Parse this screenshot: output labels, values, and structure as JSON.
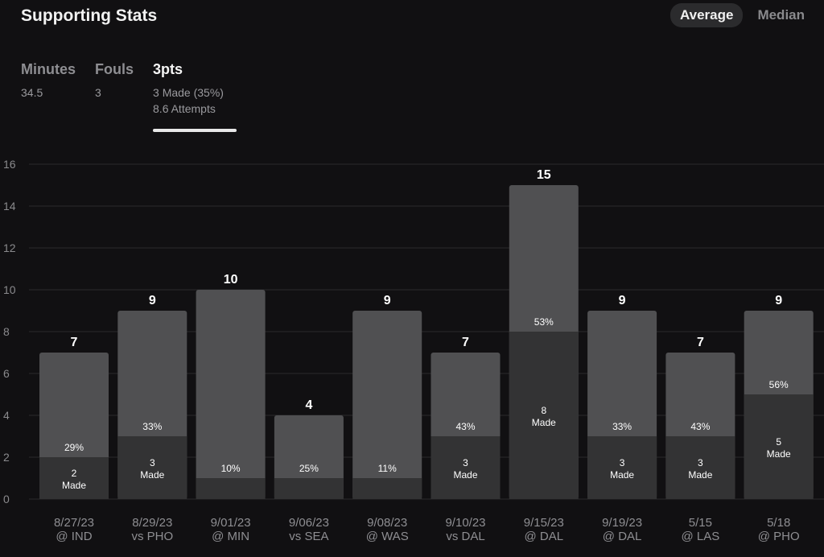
{
  "header": {
    "title": "Supporting Stats"
  },
  "toggle": {
    "options": [
      "Average",
      "Median"
    ],
    "selected": "Average"
  },
  "tabs": [
    {
      "label": "Minutes",
      "lines": [
        "34.5"
      ]
    },
    {
      "label": "Fouls",
      "lines": [
        "3"
      ]
    },
    {
      "label": "3pts",
      "lines": [
        "3 Made (35%)",
        "8.6 Attempts"
      ],
      "active": true
    }
  ],
  "chart_data": {
    "type": "bar",
    "ylim": [
      0,
      16
    ],
    "yticks": [
      0,
      2,
      4,
      6,
      8,
      10,
      12,
      14,
      16
    ],
    "made_word": "Made",
    "bars": [
      {
        "date": "8/27/23",
        "opp": "@ IND",
        "attempts": 7,
        "made": 2,
        "pct": "29%"
      },
      {
        "date": "8/29/23",
        "opp": "vs PHO",
        "attempts": 9,
        "made": 3,
        "pct": "33%"
      },
      {
        "date": "9/01/23",
        "opp": "@ MIN",
        "attempts": 10,
        "made": 1,
        "pct": "10%"
      },
      {
        "date": "9/06/23",
        "opp": "vs SEA",
        "attempts": 4,
        "made": 1,
        "pct": "25%"
      },
      {
        "date": "9/08/23",
        "opp": "@ WAS",
        "attempts": 9,
        "made": 1,
        "pct": "11%"
      },
      {
        "date": "9/10/23",
        "opp": "vs DAL",
        "attempts": 7,
        "made": 3,
        "pct": "43%"
      },
      {
        "date": "9/15/23",
        "opp": "@ DAL",
        "attempts": 15,
        "made": 8,
        "pct": "53%"
      },
      {
        "date": "9/19/23",
        "opp": "@ DAL",
        "attempts": 9,
        "made": 3,
        "pct": "33%"
      },
      {
        "date": "5/15",
        "opp": "@ LAS",
        "attempts": 7,
        "made": 3,
        "pct": "43%"
      },
      {
        "date": "5/18",
        "opp": "@ PHO",
        "attempts": 9,
        "made": 5,
        "pct": "56%"
      }
    ],
    "colors": {
      "attempts": "#505052",
      "made": "#333334",
      "grid": "#2a2a2c"
    }
  }
}
